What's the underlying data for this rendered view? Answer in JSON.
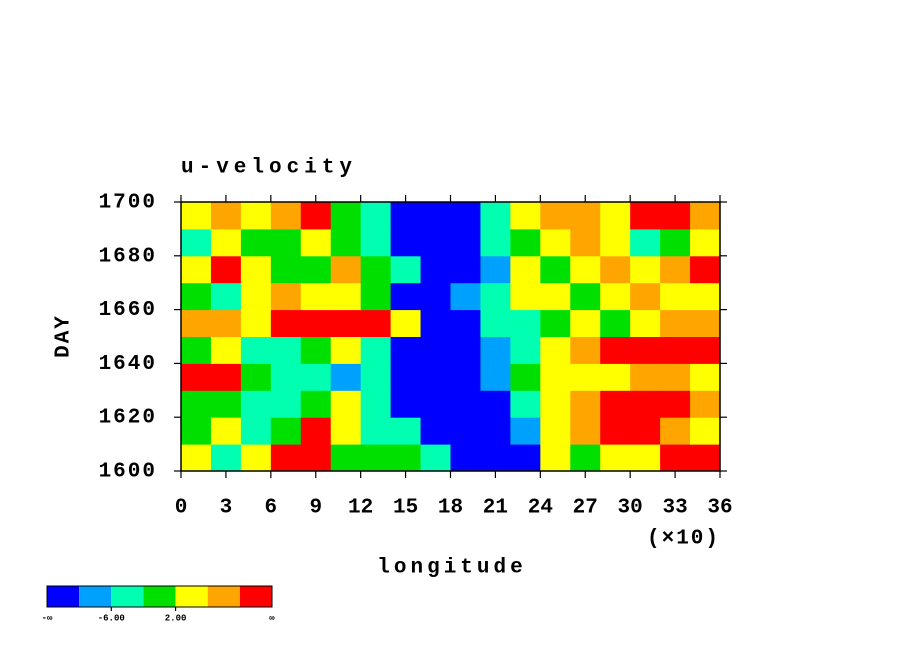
{
  "chart_data": {
    "type": "heatmap",
    "title": "u-velocity",
    "xlabel": "longitude",
    "ylabel": "DAY",
    "x_multiplier": "(×10)",
    "xlim": [
      0,
      36
    ],
    "xticks": [
      0,
      3,
      6,
      9,
      12,
      15,
      18,
      21,
      24,
      27,
      30,
      33,
      36
    ],
    "ylim": [
      1600,
      1700
    ],
    "yticks": [
      1600,
      1620,
      1640,
      1660,
      1680,
      1700
    ],
    "x": [
      1,
      3,
      5,
      7,
      9,
      11,
      13,
      15,
      17,
      19,
      21,
      23,
      25,
      27,
      29,
      31,
      33,
      35
    ],
    "y": [
      1605,
      1615,
      1625,
      1635,
      1645,
      1655,
      1665,
      1675,
      1685,
      1695
    ],
    "z": [
      [
        3,
        -3,
        4,
        11,
        12,
        1,
        -2,
        0,
        -4,
        -12,
        -14,
        -12,
        2,
        -2,
        3,
        5,
        11,
        12
      ],
      [
        1,
        5,
        -3,
        0,
        12,
        4,
        -4,
        -3,
        -12,
        -14,
        -13,
        -7,
        2,
        7,
        11,
        12,
        8,
        5
      ],
      [
        -2,
        0,
        -4,
        -3,
        0,
        3,
        -5,
        -12,
        -13,
        -12,
        -11,
        -3,
        4,
        8,
        12,
        11,
        13,
        6
      ],
      [
        12,
        11,
        0,
        -3,
        -5,
        -7,
        -6,
        -12,
        -14,
        -12,
        -8,
        0,
        3,
        5,
        4,
        8,
        6,
        3
      ],
      [
        -2,
        4,
        -3,
        -6,
        0,
        3,
        -4,
        -12,
        -13,
        -11,
        -9,
        -4,
        2,
        8,
        12,
        13,
        11,
        12
      ],
      [
        7,
        8,
        4,
        11,
        12,
        11,
        12,
        5,
        -12,
        -11,
        -6,
        -3,
        0,
        3,
        -2,
        4,
        6,
        8
      ],
      [
        0,
        -3,
        4,
        8,
        5,
        3,
        -1,
        -12,
        -11,
        -8,
        -3,
        3,
        2,
        -2,
        4,
        7,
        3,
        5
      ],
      [
        5,
        12,
        4,
        -2,
        1,
        7,
        0,
        -3,
        -12,
        -13,
        -7,
        2,
        0,
        4,
        7,
        3,
        8,
        11
      ],
      [
        -4,
        3,
        0,
        -2,
        4,
        0,
        -3,
        -12,
        -13,
        -12,
        -6,
        0,
        5,
        8,
        3,
        -3,
        0,
        4
      ],
      [
        2,
        6,
        3,
        7,
        11,
        0,
        -3,
        -12,
        -13,
        -11,
        -5,
        3,
        9,
        6,
        3,
        12,
        13,
        8
      ]
    ],
    "colorbar": {
      "colors": [
        "#0000ff",
        "#00a0ff",
        "#00ffb0",
        "#00e000",
        "#ffff00",
        "#ffa500",
        "#ff0000"
      ],
      "levels": [
        -10,
        -6,
        -2,
        2,
        6,
        10
      ],
      "min_label": "-∞",
      "max_label": "∞",
      "ticks": [
        {
          "value": -6,
          "label": "-6.00"
        },
        {
          "value": 2,
          "label": "2.00"
        }
      ]
    }
  }
}
